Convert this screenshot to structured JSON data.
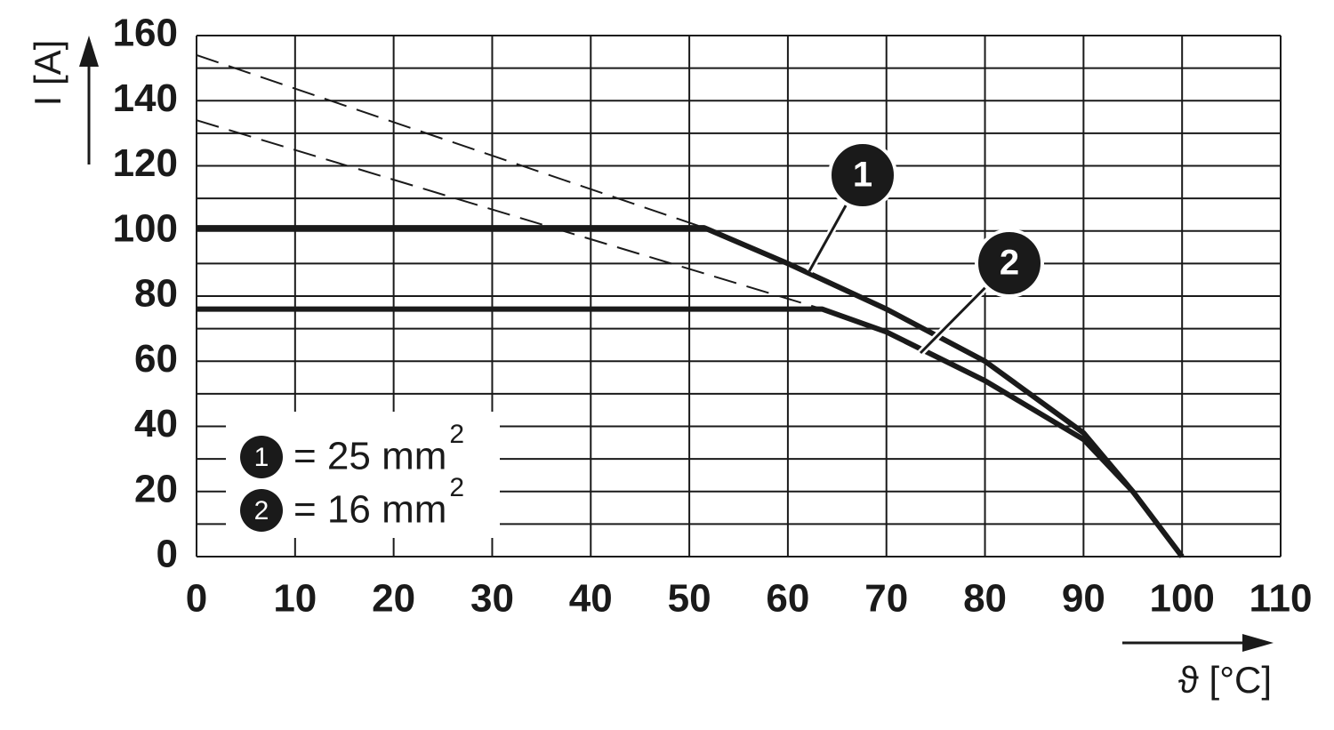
{
  "chart_data": {
    "type": "line",
    "xlabel": "ϑ [°C]",
    "ylabel": "I [A]",
    "xlim": [
      0,
      110
    ],
    "ylim": [
      0,
      160
    ],
    "xticks": [
      0,
      10,
      20,
      30,
      40,
      50,
      60,
      70,
      80,
      90,
      100,
      110
    ],
    "yticks": [
      0,
      20,
      40,
      60,
      80,
      100,
      120,
      140,
      160
    ],
    "grid": true,
    "minor_grid": true,
    "series": [
      {
        "label": "1",
        "color": "#1a1a1a",
        "x": [
          0,
          51.5,
          60,
          70,
          80,
          90,
          95,
          100
        ],
        "values": [
          101,
          101,
          90,
          76,
          60,
          38,
          20,
          0
        ]
      },
      {
        "label": "2",
        "color": "#1a1a1a",
        "x": [
          0,
          63.5,
          70,
          80,
          90,
          95,
          100
        ],
        "values": [
          76,
          76,
          69,
          54,
          36,
          20,
          0
        ]
      },
      {
        "dashed": true,
        "color": "#1a1a1a",
        "x": [
          0,
          51.5
        ],
        "values": [
          154,
          101
        ]
      },
      {
        "dashed": true,
        "color": "#1a1a1a",
        "x": [
          0,
          63.5
        ],
        "values": [
          134,
          76
        ]
      }
    ],
    "legend": [
      {
        "marker": "1",
        "text": "= 25 mm",
        "sup": "2"
      },
      {
        "marker": "2",
        "text": "= 16 mm",
        "sup": "2"
      }
    ]
  }
}
